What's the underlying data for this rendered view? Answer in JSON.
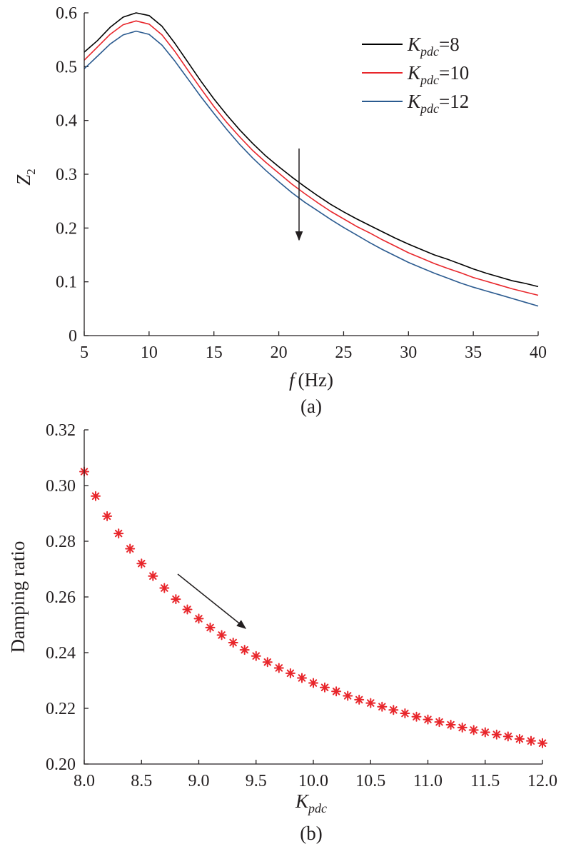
{
  "chart_data": [
    {
      "panel": "(a)",
      "type": "line",
      "xlabel": {
        "var": "f",
        "unit": "(Hz)"
      },
      "ylabel": {
        "base": "Z",
        "sub": "2"
      },
      "xlim": [
        5,
        40
      ],
      "ylim": [
        0,
        0.6
      ],
      "xticks": [
        "5",
        "10",
        "15",
        "20",
        "25",
        "30",
        "35",
        "40"
      ],
      "yticks": [
        "0",
        "0.1",
        "0.2",
        "0.3",
        "0.4",
        "0.5",
        "0.6"
      ],
      "grid": false,
      "legend_position": "top-right",
      "annotation": "downward arrow near f = 21.5 Hz indicating increasing K_pdc",
      "x": [
        5,
        6,
        7,
        8,
        9,
        10,
        11,
        12,
        13,
        14,
        15,
        16,
        17,
        18,
        19,
        20,
        21,
        22,
        23,
        24,
        25,
        26,
        27,
        28,
        29,
        30,
        31,
        32,
        33,
        34,
        35,
        36,
        37,
        38,
        39,
        40
      ],
      "series": [
        {
          "name": {
            "base": "K",
            "sub": "pdc",
            "suffix": "=8"
          },
          "color": "#000000",
          "values": [
            0.527,
            0.548,
            0.573,
            0.592,
            0.6,
            0.595,
            0.575,
            0.543,
            0.508,
            0.473,
            0.44,
            0.41,
            0.382,
            0.357,
            0.334,
            0.314,
            0.295,
            0.277,
            0.26,
            0.244,
            0.23,
            0.217,
            0.205,
            0.193,
            0.181,
            0.17,
            0.16,
            0.15,
            0.142,
            0.133,
            0.124,
            0.116,
            0.109,
            0.102,
            0.097,
            0.091
          ]
        },
        {
          "name": {
            "base": "K",
            "sub": "pdc",
            "suffix": "=10"
          },
          "color": "#e8262b",
          "values": [
            0.512,
            0.536,
            0.56,
            0.578,
            0.585,
            0.579,
            0.559,
            0.528,
            0.493,
            0.459,
            0.426,
            0.396,
            0.369,
            0.344,
            0.322,
            0.302,
            0.282,
            0.264,
            0.247,
            0.231,
            0.217,
            0.203,
            0.191,
            0.178,
            0.166,
            0.154,
            0.144,
            0.134,
            0.125,
            0.117,
            0.108,
            0.101,
            0.094,
            0.087,
            0.081,
            0.075
          ]
        },
        {
          "name": {
            "base": "K",
            "sub": "pdc",
            "suffix": "=12"
          },
          "color": "#2a5a8f",
          "values": [
            0.496,
            0.519,
            0.542,
            0.559,
            0.566,
            0.56,
            0.54,
            0.51,
            0.477,
            0.444,
            0.413,
            0.383,
            0.355,
            0.33,
            0.307,
            0.286,
            0.266,
            0.248,
            0.232,
            0.216,
            0.201,
            0.187,
            0.173,
            0.16,
            0.148,
            0.136,
            0.126,
            0.116,
            0.107,
            0.098,
            0.09,
            0.083,
            0.076,
            0.069,
            0.062,
            0.055
          ]
        }
      ]
    },
    {
      "panel": "(b)",
      "type": "scatter",
      "xlabel": {
        "base": "K",
        "sub": "pdc"
      },
      "ylabel": "Damping ratio",
      "xlim": [
        8.0,
        12.0
      ],
      "ylim": [
        0.2,
        0.32
      ],
      "xticks": [
        "8.0",
        "8.5",
        "9.0",
        "9.5",
        "10.0",
        "10.5",
        "11.0",
        "11.5",
        "12.0"
      ],
      "yticks": [
        "0.20",
        "0.22",
        "0.24",
        "0.26",
        "0.28",
        "0.30",
        "0.32"
      ],
      "grid": false,
      "marker": "asterisk",
      "marker_color": "#e8262b",
      "annotation": "diagonal arrow pointing down-right indicating decreasing damping ratio",
      "x": [
        8.0,
        8.1,
        8.2,
        8.3,
        8.4,
        8.5,
        8.6,
        8.7,
        8.8,
        8.9,
        9.0,
        9.1,
        9.2,
        9.3,
        9.4,
        9.5,
        9.6,
        9.7,
        9.8,
        9.9,
        10.0,
        10.1,
        10.2,
        10.3,
        10.4,
        10.5,
        10.6,
        10.7,
        10.8,
        10.9,
        11.0,
        11.1,
        11.2,
        11.3,
        11.4,
        11.5,
        11.6,
        11.7,
        11.8,
        11.9,
        12.0
      ],
      "y": [
        0.305,
        0.2962,
        0.289,
        0.2828,
        0.2773,
        0.272,
        0.2675,
        0.2632,
        0.2592,
        0.2555,
        0.2522,
        0.249,
        0.2463,
        0.2436,
        0.241,
        0.2388,
        0.2366,
        0.2345,
        0.2326,
        0.2309,
        0.2291,
        0.2275,
        0.2261,
        0.2245,
        0.2231,
        0.2219,
        0.2206,
        0.2194,
        0.2182,
        0.217,
        0.216,
        0.2151,
        0.2141,
        0.2131,
        0.2122,
        0.2114,
        0.2106,
        0.2099,
        0.209,
        0.2083,
        0.2075
      ]
    }
  ]
}
